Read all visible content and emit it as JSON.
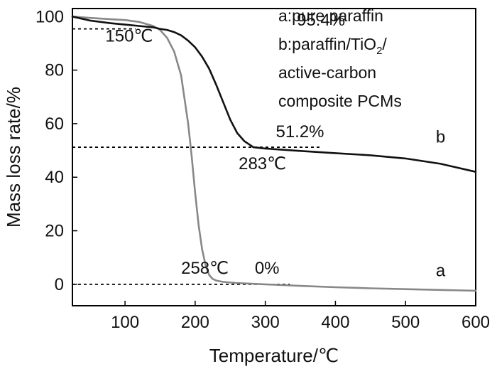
{
  "chart_data": {
    "type": "line",
    "xlabel": "Temperature/℃",
    "ylabel": "Mass loss rate/%",
    "xlim": [
      25,
      600
    ],
    "ylim": [
      -8,
      103
    ],
    "x_ticks": [
      100,
      200,
      300,
      400,
      500,
      600
    ],
    "y_ticks": [
      0,
      20,
      40,
      60,
      80,
      100
    ],
    "grid": false,
    "legend": {
      "placement": "top-right",
      "line1": "a:pure paraffin",
      "line2_prefix": "b:paraffin/TiO",
      "line2_sub": "2",
      "line2_suffix": "/",
      "line3": "active-carbon",
      "line4": "composite PCMs"
    },
    "series": [
      {
        "name": "a",
        "label": "a",
        "color": "#888888",
        "x": [
          25,
          50,
          80,
          100,
          120,
          140,
          150,
          160,
          170,
          180,
          190,
          195,
          200,
          205,
          210,
          215,
          220,
          225,
          230,
          240,
          258,
          300,
          350,
          400,
          450,
          500,
          550,
          600
        ],
        "y": [
          100,
          99.5,
          99,
          98.7,
          98,
          96.5,
          95,
          92,
          87,
          78,
          60,
          48,
          34,
          22,
          13,
          7,
          3.5,
          2,
          1.4,
          0.9,
          0.5,
          0,
          -0.6,
          -1.1,
          -1.5,
          -1.8,
          -2.1,
          -2.4
        ]
      },
      {
        "name": "b",
        "label": "b",
        "color": "#111111",
        "x": [
          25,
          50,
          80,
          100,
          120,
          140,
          150,
          160,
          170,
          180,
          190,
          200,
          210,
          220,
          230,
          240,
          250,
          260,
          270,
          283,
          300,
          350,
          400,
          450,
          500,
          550,
          600
        ],
        "y": [
          100,
          98.5,
          97.5,
          97,
          96.5,
          96,
          95.4,
          95,
          94.2,
          93,
          91,
          88.5,
          85,
          80.5,
          74.5,
          68,
          61.5,
          56.5,
          53.5,
          51.2,
          50.7,
          49.8,
          49,
          48.2,
          47,
          45,
          42
        ]
      }
    ],
    "reference_lines": [
      {
        "y": 95.4,
        "x_start": 25,
        "x_end": 115,
        "style": "dashed"
      },
      {
        "y": 51.2,
        "x_start": 25,
        "x_end": 380,
        "style": "dashed"
      },
      {
        "y": 0,
        "x_start": 25,
        "x_end": 335,
        "style": "dashed"
      }
    ],
    "annotations": [
      {
        "id": "b-start-temp",
        "text": "150℃",
        "x": 72,
        "y": 90.7
      },
      {
        "id": "b-start-mass",
        "text": "95.4%",
        "x": 345,
        "y": 96.6
      },
      {
        "id": "b-residue",
        "text": "51.2%",
        "x": 315,
        "y": 55
      },
      {
        "id": "b-end-temp",
        "text": "283℃",
        "x": 262,
        "y": 43
      },
      {
        "id": "a-end-temp",
        "text": "258℃",
        "x": 180,
        "y": 4
      },
      {
        "id": "a-residue",
        "text": "0%",
        "x": 285,
        "y": 4
      }
    ]
  }
}
